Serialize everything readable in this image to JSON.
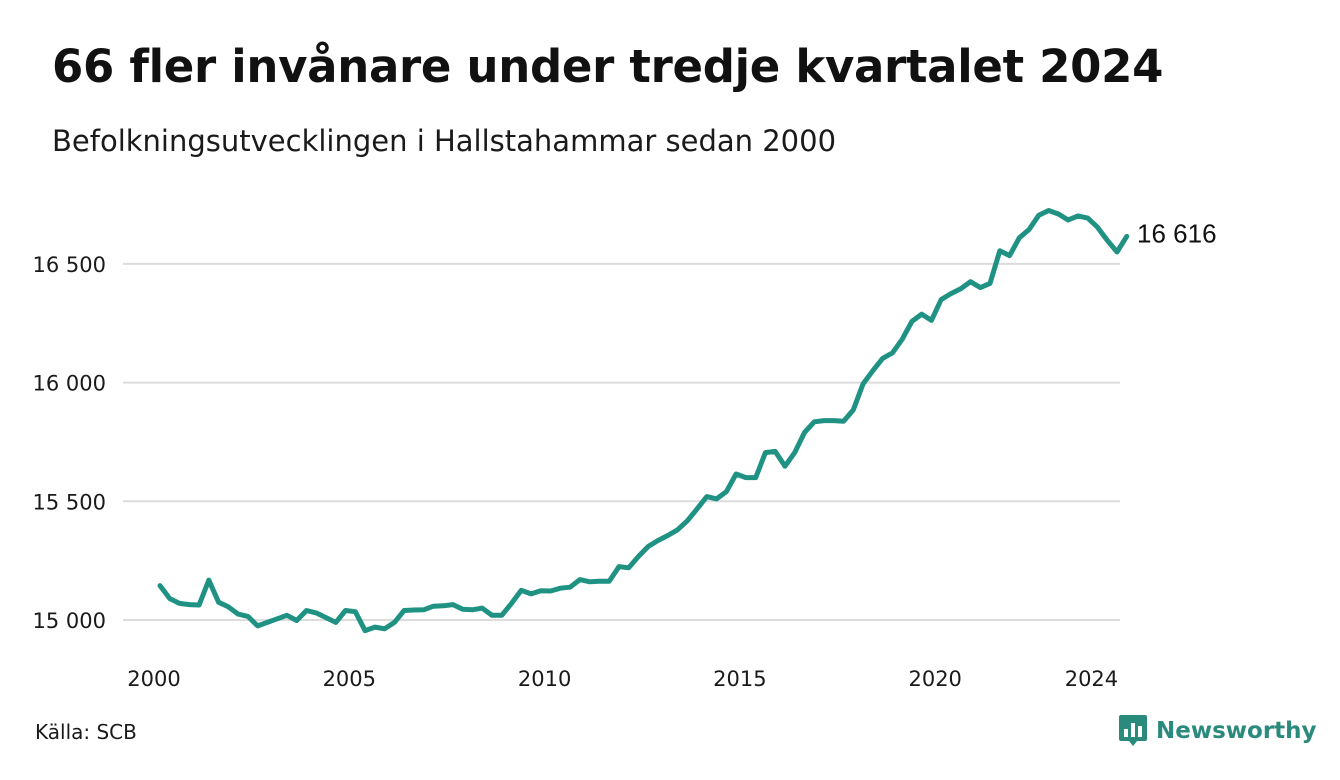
{
  "header": {
    "title": "66 fler invånare under tredje kvartalet 2024",
    "subtitle": "Befolkningsutvecklingen i Hallstahammar sedan 2000"
  },
  "footer": {
    "source": "Källa: SCB",
    "brand": "Newsworthy"
  },
  "colors": {
    "line": "#1f9283",
    "grid": "#dcdcdc",
    "brand": "#2a8a7c"
  },
  "icons": {
    "brand": "bar-chart-speech-bubble-icon"
  },
  "chart_data": {
    "type": "line",
    "title": "66 fler invånare under tredje kvartalet 2024",
    "subtitle": "Befolkningsutvecklingen i Hallstahammar sedan 2000",
    "xlabel": "",
    "ylabel": "",
    "frequency": "quarterly",
    "x_start": "2000 Q1",
    "xlim": [
      2000.0,
      2024.5
    ],
    "ylim": [
      14900,
      16800
    ],
    "x_ticks": [
      2000,
      2005,
      2010,
      2015,
      2020,
      2024
    ],
    "x_tick_labels": [
      "2000",
      "2005",
      "2010",
      "2015",
      "2020",
      "2024"
    ],
    "y_ticks": [
      15000,
      15500,
      16000,
      16500
    ],
    "y_tick_labels": [
      "15 000",
      "15 500",
      "16 000",
      "16 500"
    ],
    "grid": "horizontal",
    "end_label": "16 616",
    "values": [
      15145,
      15090,
      15070,
      15065,
      15063,
      15168,
      15075,
      15055,
      15025,
      15015,
      14975,
      14990,
      15005,
      15020,
      14998,
      15040,
      15030,
      15010,
      14990,
      15040,
      15035,
      14955,
      14970,
      14963,
      14990,
      15040,
      15042,
      15043,
      15058,
      15060,
      15065,
      15045,
      15043,
      15050,
      15020,
      15020,
      15070,
      15125,
      15110,
      15123,
      15122,
      15134,
      15138,
      15170,
      15161,
      15163,
      15163,
      15225,
      15220,
      15268,
      15310,
      15335,
      15356,
      15380,
      15418,
      15468,
      15520,
      15510,
      15541,
      15615,
      15600,
      15600,
      15705,
      15710,
      15648,
      15705,
      15790,
      15835,
      15840,
      15840,
      15837,
      15885,
      15995,
      16050,
      16102,
      16125,
      16182,
      16258,
      16288,
      16262,
      16350,
      16375,
      16395,
      16425,
      16400,
      16418,
      16555,
      16535,
      16610,
      16645,
      16705,
      16725,
      16710,
      16685,
      16702,
      16693,
      16655,
      16600,
      16550,
      16616
    ]
  }
}
